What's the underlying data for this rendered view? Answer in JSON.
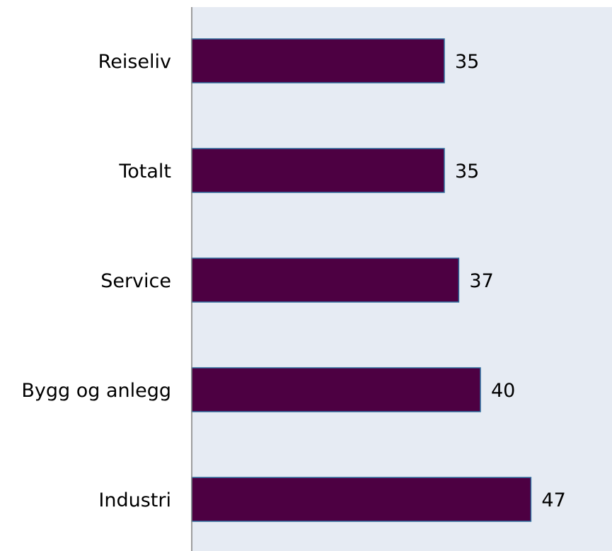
{
  "chart_data": {
    "type": "bar",
    "orientation": "horizontal",
    "categories": [
      "Reiseliv",
      "Totalt",
      "Service",
      "Bygg og anlegg",
      "Industri"
    ],
    "values": [
      35,
      35,
      37,
      40,
      47
    ],
    "data_labels": [
      "35",
      "35",
      "37",
      "40",
      "47"
    ],
    "title": "",
    "xlabel": "",
    "ylabel": "",
    "xlim": [
      0,
      58
    ],
    "grid": false,
    "legend": "none",
    "colors": {
      "bar_fill": "#4d0042",
      "bar_stroke": "#2e6e9e",
      "plot_background": "#e6ebf3",
      "axis": "#808080"
    }
  }
}
